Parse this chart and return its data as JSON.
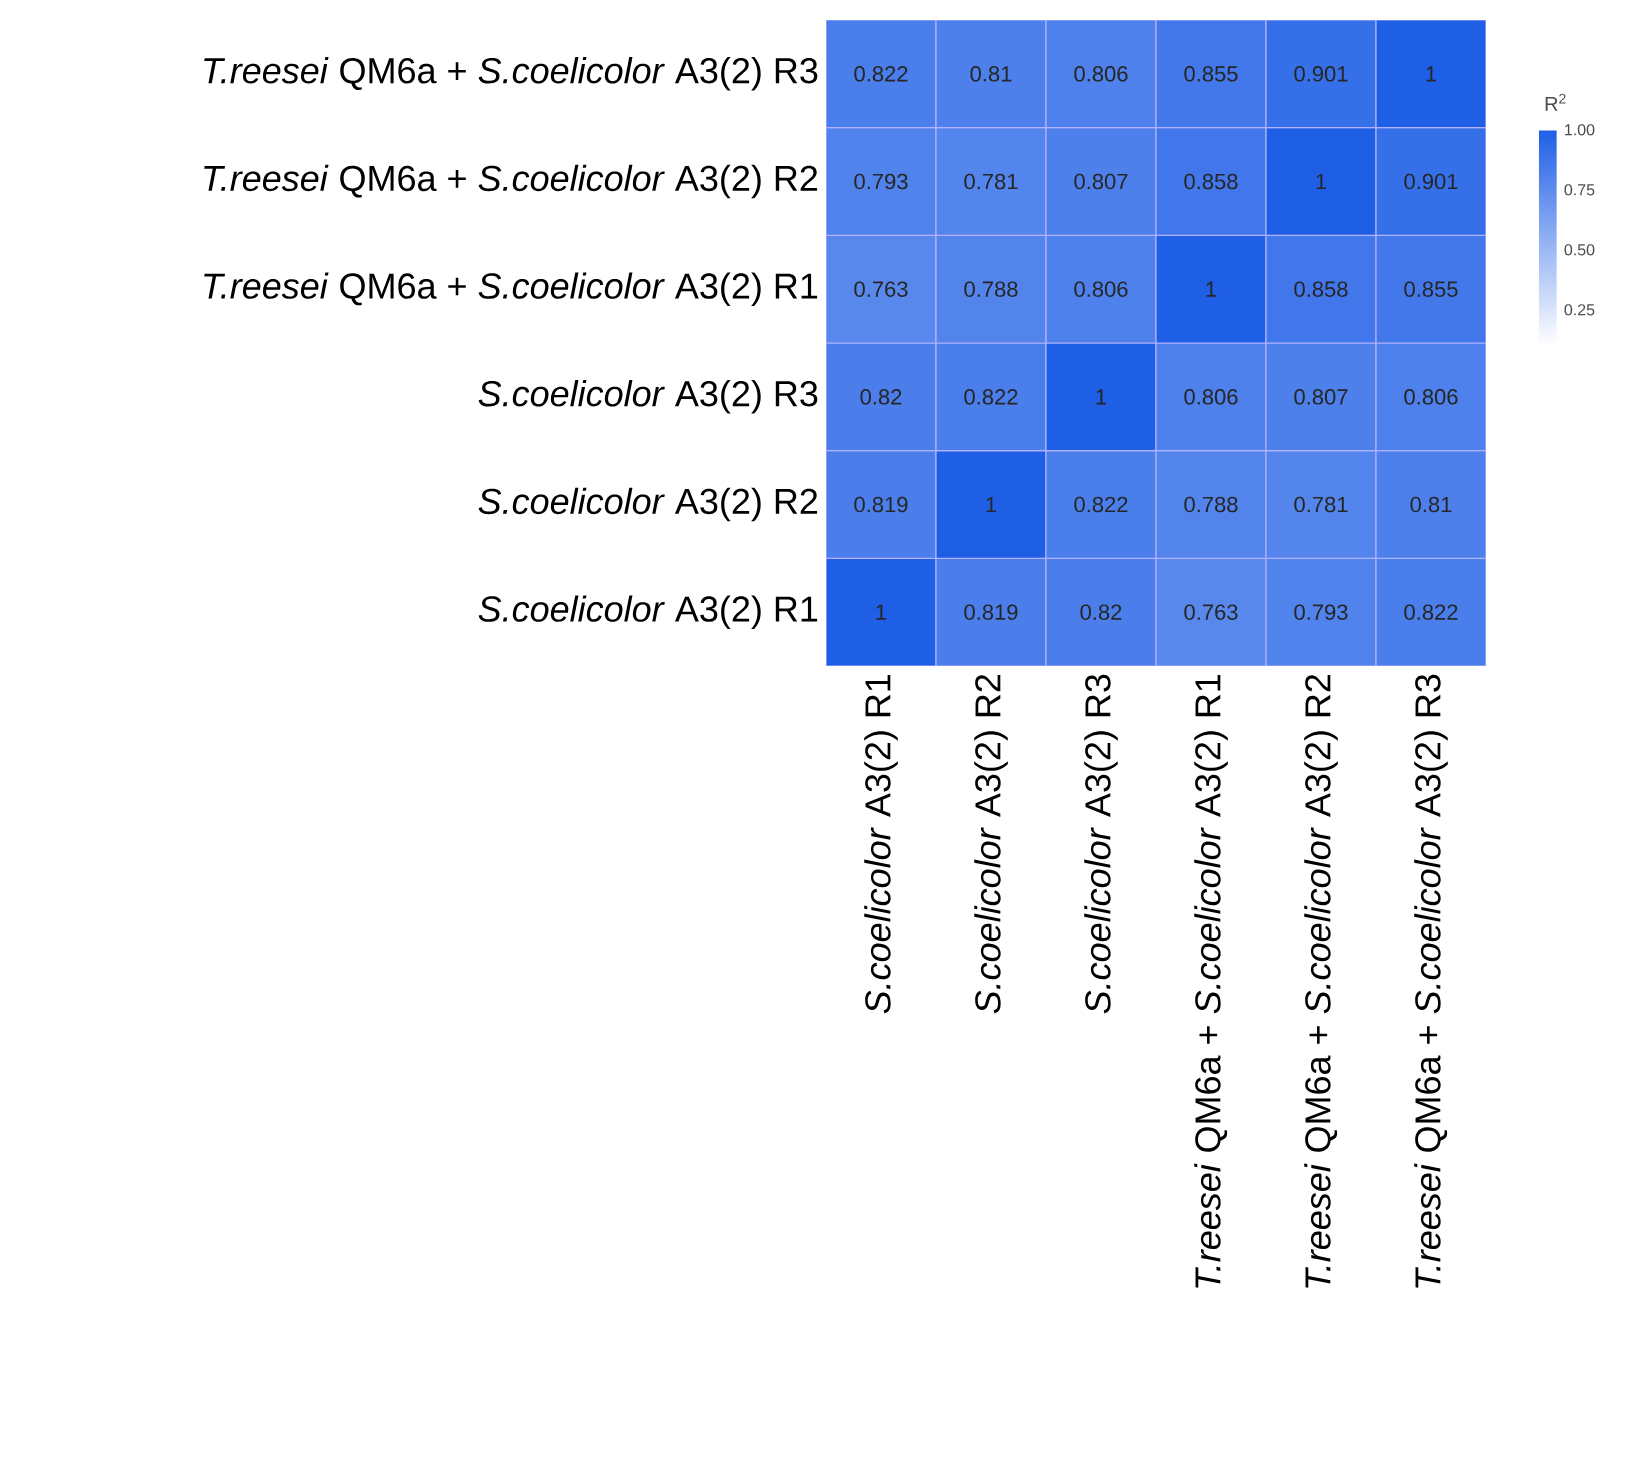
{
  "chart_data": {
    "type": "heatmap",
    "categories": [
      "*S.coelicolor* A3(2) R1",
      "*S.coelicolor* A3(2) R2",
      "*S.coelicolor* A3(2) R3",
      "*T.reesei* QM6a + *S.coelicolor* A3(2) R1",
      "*T.reesei* QM6a + *S.coelicolor* A3(2) R2",
      "*T.reesei* QM6a + *S.coelicolor* A3(2) R3"
    ],
    "y_categories": [
      "*T.reesei* QM6a + *S.coelicolor* A3(2) R3",
      "*T.reesei* QM6a + *S.coelicolor* A3(2) R2",
      "*T.reesei* QM6a + *S.coelicolor* A3(2) R1",
      "*S.coelicolor* A3(2) R3",
      "*S.coelicolor* A3(2) R2",
      "*S.coelicolor* A3(2) R1"
    ],
    "cells": [
      [
        0.822,
        0.81,
        0.806,
        0.855,
        0.901,
        1
      ],
      [
        0.793,
        0.781,
        0.807,
        0.858,
        1,
        0.901
      ],
      [
        0.763,
        0.788,
        0.806,
        1,
        0.858,
        0.855
      ],
      [
        0.82,
        0.822,
        1,
        0.806,
        0.807,
        0.806
      ],
      [
        0.819,
        1,
        0.822,
        0.788,
        0.781,
        0.81
      ],
      [
        1,
        0.819,
        0.82,
        0.763,
        0.793,
        0.822
      ]
    ],
    "data_labels": true,
    "clabel": "R$^{2}$",
    "clim": [
      0.1,
      1
    ],
    "cticks": [
      {
        "value": 1,
        "label": "1.00"
      },
      0.75,
      {
        "value": 0.5,
        "label": "0.50"
      },
      0.25
    ]
  }
}
